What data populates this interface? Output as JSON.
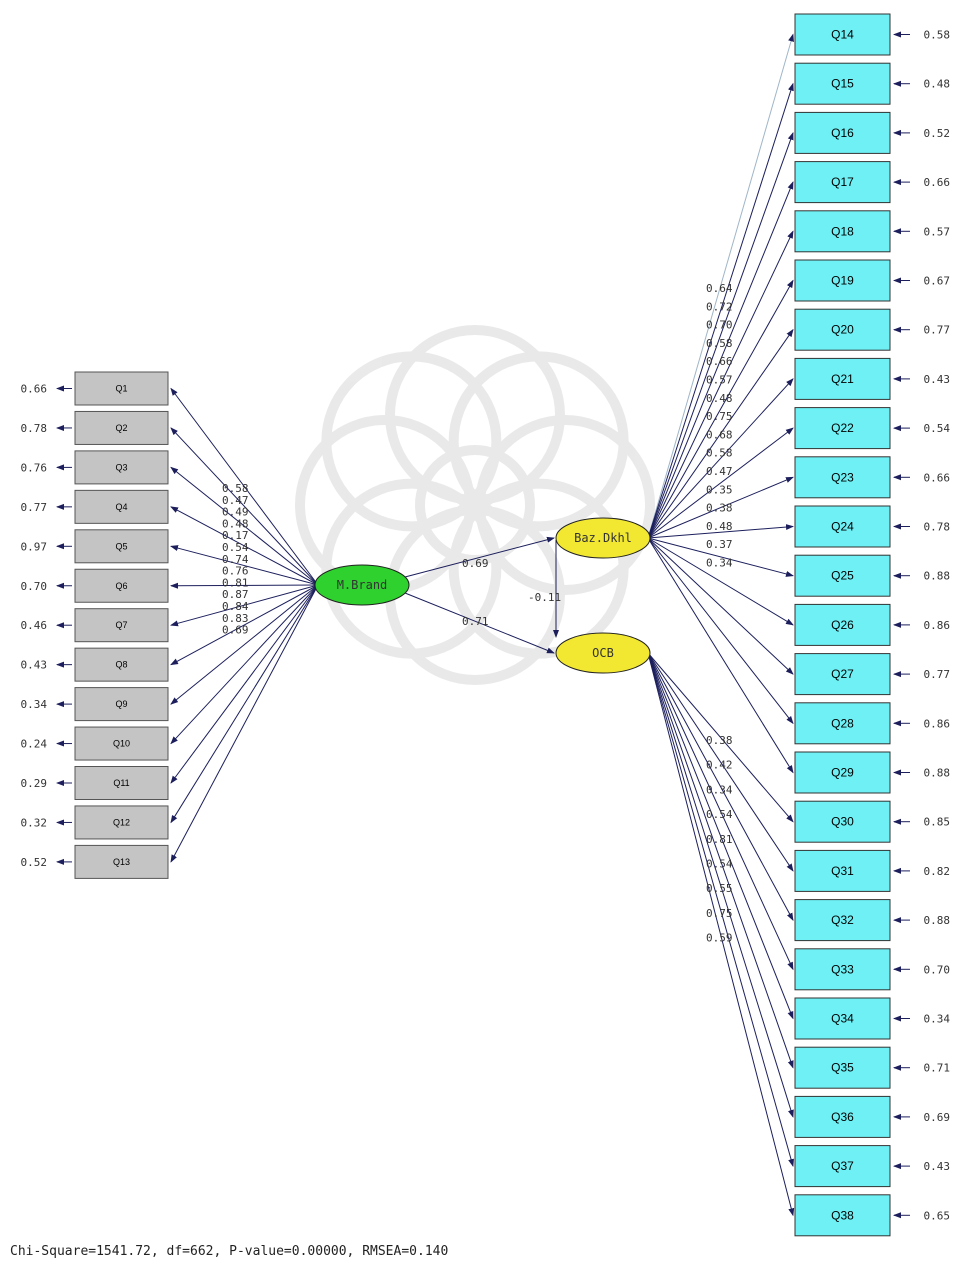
{
  "diagram": {
    "latents": {
      "exogenous": {
        "label": "M.Brand"
      },
      "mediator": {
        "label": "Baz.Dkhl"
      },
      "outcome": {
        "label": "OCB"
      }
    },
    "structural_paths": {
      "brand_to_baz": "0.69",
      "brand_to_ocb": "0.71",
      "baz_to_ocb": "-0.11"
    },
    "brand_indicators": [
      {
        "label": "Q1",
        "loading": "0.58",
        "error": "0.66"
      },
      {
        "label": "Q2",
        "loading": "0.47",
        "error": "0.78"
      },
      {
        "label": "Q3",
        "loading": "0.49",
        "error": "0.76"
      },
      {
        "label": "Q4",
        "loading": "0.48",
        "error": "0.77"
      },
      {
        "label": "Q5",
        "loading": "0.17",
        "error": "0.97"
      },
      {
        "label": "Q6",
        "loading": "0.54",
        "error": "0.70"
      },
      {
        "label": "Q7",
        "loading": "0.74",
        "error": "0.46"
      },
      {
        "label": "Q8",
        "loading": "0.76",
        "error": "0.43"
      },
      {
        "label": "Q9",
        "loading": "0.81",
        "error": "0.34"
      },
      {
        "label": "Q10",
        "loading": "0.87",
        "error": "0.24"
      },
      {
        "label": "Q11",
        "loading": "0.84",
        "error": "0.29"
      },
      {
        "label": "Q12",
        "loading": "0.83",
        "error": "0.32"
      },
      {
        "label": "Q13",
        "loading": "0.69",
        "error": "0.52"
      }
    ],
    "baz_indicators": [
      {
        "label": "Q14",
        "loading": "0.64",
        "error": "0.58"
      },
      {
        "label": "Q15",
        "loading": "0.72",
        "error": "0.48"
      },
      {
        "label": "Q16",
        "loading": "0.70",
        "error": "0.52"
      },
      {
        "label": "Q17",
        "loading": "0.58",
        "error": "0.66"
      },
      {
        "label": "Q18",
        "loading": "0.66",
        "error": "0.57"
      },
      {
        "label": "Q19",
        "loading": "0.57",
        "error": "0.67"
      },
      {
        "label": "Q20",
        "loading": "0.48",
        "error": "0.77"
      },
      {
        "label": "Q21",
        "loading": "0.75",
        "error": "0.43"
      },
      {
        "label": "Q22",
        "loading": "0.68",
        "error": "0.54"
      },
      {
        "label": "Q23",
        "loading": "0.58",
        "error": "0.66"
      },
      {
        "label": "Q24",
        "loading": "0.47",
        "error": "0.78"
      },
      {
        "label": "Q25",
        "loading": "0.35",
        "error": "0.88"
      },
      {
        "label": "Q26",
        "loading": "0.38",
        "error": "0.86"
      },
      {
        "label": "Q27",
        "loading": "0.48",
        "error": "0.77"
      },
      {
        "label": "Q28",
        "loading": "0.37",
        "error": "0.86"
      },
      {
        "label": "Q29",
        "loading": "0.34",
        "error": "0.88"
      }
    ],
    "ocb_indicators": [
      {
        "label": "Q30",
        "loading": "0.38",
        "error": "0.85"
      },
      {
        "label": "Q31",
        "loading": "0.42",
        "error": "0.82"
      },
      {
        "label": "Q32",
        "loading": "0.34",
        "error": "0.88"
      },
      {
        "label": "Q33",
        "loading": "0.54",
        "error": "0.70"
      },
      {
        "label": "Q34",
        "loading": "0.81",
        "error": "0.34"
      },
      {
        "label": "Q35",
        "loading": "0.54",
        "error": "0.71"
      },
      {
        "label": "Q36",
        "loading": "0.55",
        "error": "0.69"
      },
      {
        "label": "Q37",
        "loading": "0.75",
        "error": "0.43"
      },
      {
        "label": "Q38",
        "loading": "0.59",
        "error": "0.65"
      }
    ],
    "colors": {
      "exogenous_fill": "#2ed12e",
      "endogenous_fill": "#f2e832",
      "left_box_fill": "#c4c4c4",
      "right_box_fill": "#6ef0f5",
      "arrow": "#1c1f5c"
    }
  },
  "fit_statistics": "Chi-Square=1541.72, df=662, P-value=0.00000, RMSEA=0.140"
}
